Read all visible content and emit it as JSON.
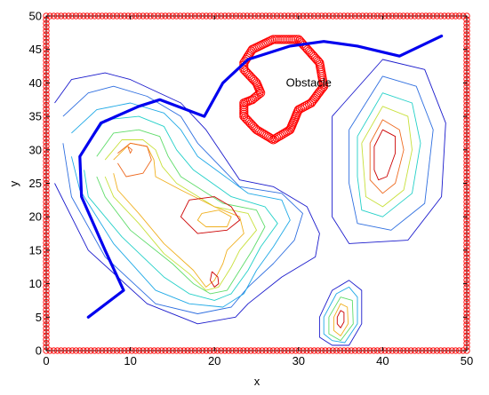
{
  "chart_data": {
    "type": "line",
    "title": "",
    "xlabel": "x",
    "ylabel": "y",
    "xlim": [
      0,
      50
    ],
    "ylim": [
      0,
      50
    ],
    "xticks": [
      0,
      10,
      20,
      30,
      40,
      50
    ],
    "yticks": [
      0,
      5,
      10,
      15,
      20,
      25,
      30,
      35,
      40,
      45,
      50
    ],
    "grid": false,
    "annotations": [
      {
        "text": "Obstacle",
        "x": 28.5,
        "y": 40
      }
    ],
    "colors": {
      "path": "#0000ee",
      "boundary": "#ff0000",
      "obstacle": "#ff0000",
      "contour_low": "#1a1acc",
      "contour_high": "#cc0000"
    },
    "series": [
      {
        "kind": "path",
        "x": [
          5,
          9.2,
          7,
          4.2,
          4,
          6.5,
          11,
          13.5,
          18.8,
          21,
          24,
          29,
          33,
          37,
          42,
          47
        ],
        "y": [
          5,
          9,
          15,
          23,
          29,
          34,
          36.5,
          37.5,
          35,
          40,
          43.5,
          45.5,
          46.2,
          45.5,
          44,
          47
        ]
      },
      {
        "kind": "contour",
        "x": [
          1,
          3,
          7,
          10,
          16,
          19,
          23,
          27,
          31,
          32.5,
          32,
          28,
          24,
          22.5,
          18,
          12,
          5,
          1
        ],
        "y": [
          37,
          40.5,
          41.5,
          40.5,
          37,
          33,
          25.5,
          24.5,
          21.5,
          17.5,
          14,
          11,
          7,
          5,
          4,
          7,
          15,
          25
        ]
      },
      {
        "kind": "contour",
        "x": [
          2,
          5,
          8,
          12,
          16,
          18,
          23,
          28,
          30.5,
          29.5,
          27,
          24,
          22,
          18,
          13,
          7,
          3,
          2
        ],
        "y": [
          35,
          38.5,
          39.5,
          38,
          35,
          31,
          24.5,
          23.5,
          20.5,
          16.5,
          13,
          9.5,
          6.5,
          5.5,
          7,
          14,
          23,
          31
        ]
      },
      {
        "kind": "contour",
        "x": [
          3,
          6,
          10,
          14,
          16,
          18,
          24,
          28,
          29,
          27,
          25,
          23.5,
          21,
          17,
          13,
          8,
          4,
          3
        ],
        "y": [
          32.5,
          36,
          37,
          35.5,
          33,
          29,
          23.5,
          22.5,
          19.5,
          15.5,
          12,
          8.5,
          6.5,
          7,
          9,
          16,
          24,
          29
        ]
      },
      {
        "kind": "contour",
        "x": [
          4.5,
          7,
          11,
          14,
          15.5,
          17.5,
          22,
          26,
          27.5,
          25.5,
          24,
          22,
          20,
          17,
          14,
          9,
          5,
          4.5
        ],
        "y": [
          30,
          34.5,
          35,
          33.5,
          30,
          27,
          23,
          21.5,
          19,
          15.5,
          12,
          8.5,
          7.5,
          8.5,
          11,
          17,
          23,
          27
        ]
      },
      {
        "kind": "contour",
        "x": [
          6,
          8,
          11,
          13.5,
          14.5,
          16,
          21,
          25,
          26,
          24.5,
          23,
          21.5,
          19.5,
          17.5,
          15,
          10,
          7,
          6
        ],
        "y": [
          29,
          32.5,
          33,
          32,
          29,
          26,
          22,
          21,
          18.5,
          15,
          12,
          9,
          8.5,
          10,
          13,
          18,
          23,
          26
        ]
      },
      {
        "kind": "contour",
        "x": [
          7,
          9,
          11.5,
          13,
          13.8,
          15.5,
          20,
          24,
          25,
          23,
          22,
          20.5,
          19,
          17,
          14,
          11,
          8,
          7
        ],
        "y": [
          28.5,
          31.5,
          31.5,
          30,
          27.5,
          25,
          21.5,
          20.5,
          18,
          15,
          12.5,
          9.5,
          9,
          11.5,
          14.5,
          19,
          23,
          26
        ]
      },
      {
        "kind": "contour",
        "x": [
          8,
          10,
          12,
          12.8,
          13,
          16,
          20,
          23,
          23.5,
          21.5,
          21,
          20,
          19,
          17.5,
          14,
          11,
          8.5,
          8
        ],
        "y": [
          28.5,
          31,
          30.5,
          28.5,
          26,
          24,
          21.5,
          20,
          17.5,
          15,
          13,
          10.5,
          9.5,
          12,
          16,
          20.5,
          24,
          26.5
        ]
      },
      {
        "kind": "contour",
        "x": [
          8.5,
          10,
          12,
          12.5,
          11.5,
          9.5,
          8.5
        ],
        "y": [
          29.5,
          31,
          30.5,
          28.5,
          26.5,
          26,
          28
        ]
      },
      {
        "kind": "contour",
        "x": [
          17,
          20,
          22,
          23,
          21.5,
          18,
          16,
          17
        ],
        "y": [
          22.5,
          23,
          21.5,
          19.5,
          18,
          17.5,
          20,
          22.5
        ]
      },
      {
        "kind": "contour",
        "x": [
          18.5,
          20.5,
          22,
          21.5,
          19,
          18,
          18.5
        ],
        "y": [
          20.5,
          21,
          20,
          18.5,
          18.5,
          19.5,
          20.5
        ]
      },
      {
        "kind": "contour",
        "x": [
          19.7,
          20.4,
          20.5,
          20,
          19.5,
          19.7
        ],
        "y": [
          11.8,
          11,
          10,
          9.5,
          10.5,
          11.8
        ]
      },
      {
        "kind": "contour",
        "x": [
          9.7,
          10.2,
          10,
          9.7
        ],
        "y": [
          30.5,
          30,
          29.5,
          30.5
        ]
      },
      {
        "kind": "contour",
        "x": [
          34,
          40,
          45,
          47.5,
          47,
          43,
          36,
          34,
          34,
          34
        ],
        "y": [
          35,
          43.5,
          42,
          34,
          23,
          16.5,
          16,
          20,
          28,
          35
        ]
      },
      {
        "kind": "contour",
        "x": [
          36,
          40,
          44,
          46,
          45,
          41,
          37,
          36,
          36
        ],
        "y": [
          33,
          41,
          39.5,
          33,
          22,
          18,
          19,
          25,
          33
        ]
      },
      {
        "kind": "contour",
        "x": [
          37,
          40,
          43.5,
          44.5,
          43.5,
          40,
          37.5,
          37,
          37
        ],
        "y": [
          32,
          38.5,
          37,
          31,
          23.5,
          20,
          21,
          26,
          32
        ]
      },
      {
        "kind": "contour",
        "x": [
          37.5,
          40,
          43,
          43.5,
          42.5,
          40,
          38,
          37.5
        ],
        "y": [
          31,
          36.5,
          35,
          30,
          24,
          21.5,
          23,
          31
        ]
      },
      {
        "kind": "contour",
        "x": [
          38.5,
          40,
          42,
          42.5,
          41.5,
          40,
          38.5,
          38.5
        ],
        "y": [
          31,
          34.5,
          33,
          30,
          25,
          23.5,
          25.5,
          31
        ]
      },
      {
        "kind": "contour",
        "x": [
          39,
          40,
          41.5,
          41.5,
          40.5,
          39.5,
          39,
          39
        ],
        "y": [
          30.5,
          33,
          32,
          29.5,
          26,
          25.5,
          27,
          30.5
        ]
      },
      {
        "kind": "contour",
        "x": [
          32.5,
          34,
          36,
          37.5,
          37.5,
          36,
          34,
          32.5,
          32.5
        ],
        "y": [
          5,
          9,
          10.5,
          9,
          4,
          0.8,
          0.8,
          2,
          5
        ]
      },
      {
        "kind": "contour",
        "x": [
          33,
          34.5,
          36,
          37,
          37,
          35.5,
          34,
          33,
          33
        ],
        "y": [
          5,
          8.5,
          9.5,
          8,
          4,
          1.2,
          1.5,
          2.5,
          5
        ]
      },
      {
        "kind": "contour",
        "x": [
          33.6,
          35,
          36.4,
          36.5,
          35,
          33.6,
          33.6
        ],
        "y": [
          5,
          8,
          7.5,
          4,
          1.5,
          2.5,
          5
        ]
      },
      {
        "kind": "contour",
        "x": [
          34.2,
          35,
          35.8,
          35.9,
          35,
          34.2,
          34.2
        ],
        "y": [
          5,
          7,
          6.5,
          4,
          2.2,
          3,
          5
        ]
      },
      {
        "kind": "contour",
        "x": [
          34.6,
          35,
          35.4,
          35.4,
          35,
          34.6,
          34.6
        ],
        "y": [
          5,
          6,
          5.7,
          4.3,
          3.4,
          4,
          5
        ]
      },
      {
        "kind": "boundary",
        "x": [
          0,
          50,
          50,
          0,
          0
        ],
        "y": [
          0,
          0,
          50,
          50,
          0
        ]
      },
      {
        "kind": "obstacle",
        "x": [
          23.5,
          24.5,
          27,
          30,
          32.5,
          33,
          31.5,
          30,
          29.5,
          29,
          27,
          25,
          23.5,
          23.5,
          24.5,
          25.5,
          25,
          23.5,
          23.5
        ],
        "y": [
          43,
          45,
          46.5,
          46.5,
          43,
          39.5,
          37,
          36,
          34.5,
          33,
          31.5,
          33,
          35,
          37,
          37.5,
          38.5,
          40,
          42,
          43
        ]
      }
    ]
  }
}
